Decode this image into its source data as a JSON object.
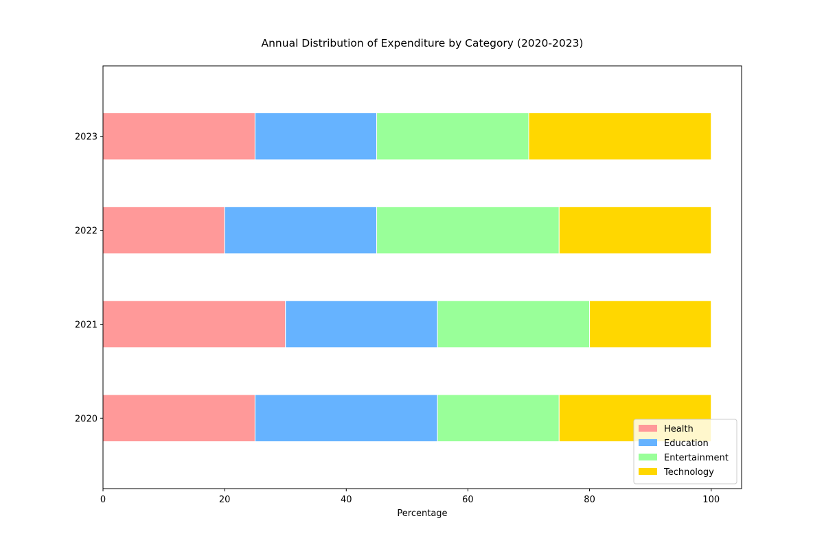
{
  "chart_data": {
    "type": "bar",
    "orientation": "horizontal",
    "stacked": true,
    "title": "Annual Distribution of Expenditure by Category (2020-2023)",
    "xlabel": "Percentage",
    "ylabel": "",
    "xlim": [
      0,
      105
    ],
    "xticks": [
      0,
      20,
      40,
      60,
      80,
      100
    ],
    "categories": [
      "2020",
      "2021",
      "2022",
      "2023"
    ],
    "series": [
      {
        "name": "Health",
        "color": "#ff9999",
        "values": [
          25,
          30,
          20,
          25
        ]
      },
      {
        "name": "Education",
        "color": "#66b3ff",
        "values": [
          30,
          25,
          25,
          20
        ]
      },
      {
        "name": "Entertainment",
        "color": "#99ff99",
        "values": [
          20,
          25,
          30,
          25
        ]
      },
      {
        "name": "Technology",
        "color": "#ffd700",
        "values": [
          25,
          20,
          25,
          30
        ]
      }
    ],
    "grid": false,
    "legend_position": "lower right"
  }
}
